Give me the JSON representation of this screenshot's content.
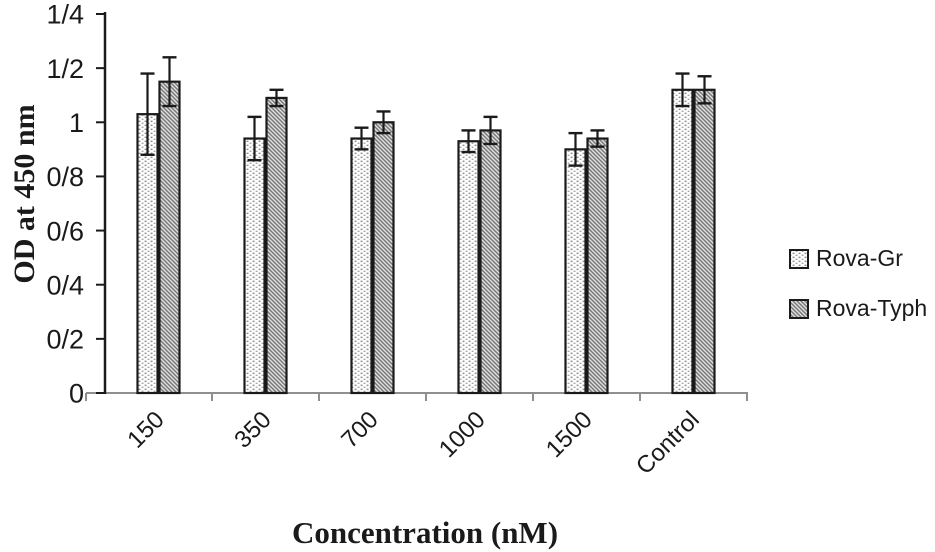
{
  "figure": {
    "background": "#ffffff"
  },
  "chart_data": {
    "type": "bar",
    "title": "",
    "xlabel": "Concentration (nM)",
    "ylabel": "OD at 450 nm",
    "categories": [
      "150",
      "350",
      "700",
      "1000",
      "1500",
      "Control"
    ],
    "series": [
      {
        "name": "Rova-Gr",
        "pattern": "dotted",
        "values": [
          1.03,
          0.94,
          0.94,
          0.93,
          0.9,
          1.12
        ],
        "errors": [
          0.15,
          0.08,
          0.04,
          0.04,
          0.06,
          0.06
        ]
      },
      {
        "name": "Rova-Typh",
        "pattern": "diagonal-weave",
        "values": [
          1.15,
          1.09,
          1.0,
          0.97,
          0.94,
          1.12
        ],
        "errors": [
          0.09,
          0.03,
          0.04,
          0.05,
          0.03,
          0.05
        ]
      }
    ],
    "ylim": [
      0,
      1.4
    ],
    "y_ticks": [
      {
        "value": 0,
        "label": "0"
      },
      {
        "value": 0.2,
        "label": "0/2"
      },
      {
        "value": 0.4,
        "label": "0/4"
      },
      {
        "value": 0.6,
        "label": "0/6"
      },
      {
        "value": 0.8,
        "label": "0/8"
      },
      {
        "value": 1,
        "label": "1"
      },
      {
        "value": 1.2,
        "label": "1/2"
      },
      {
        "value": 1.4,
        "label": "1/4"
      }
    ],
    "x_tick_rotation_deg": -45,
    "error_bars": "both-directions",
    "grid": false,
    "legend_position": "right"
  },
  "legend": {
    "items": [
      {
        "label": "Rova-Gr",
        "swatch": "dotted-pattern-swatch"
      },
      {
        "label": "Rova-Typh",
        "swatch": "diagonal-pattern-swatch"
      }
    ]
  },
  "colors": {
    "background": "#ffffff",
    "axis_y": "#1a1a1a",
    "axis_x": "#8f8f8f",
    "bar_outline": "#1a1a1a",
    "error_bar": "#1a1a1a",
    "dot_pattern_dot": "#8f8f8f",
    "dot_pattern_bg": "#ffffff",
    "weave_pattern_line": "#787878",
    "weave_pattern_bg": "#e2e2e2",
    "text": "#1a1a1a"
  }
}
